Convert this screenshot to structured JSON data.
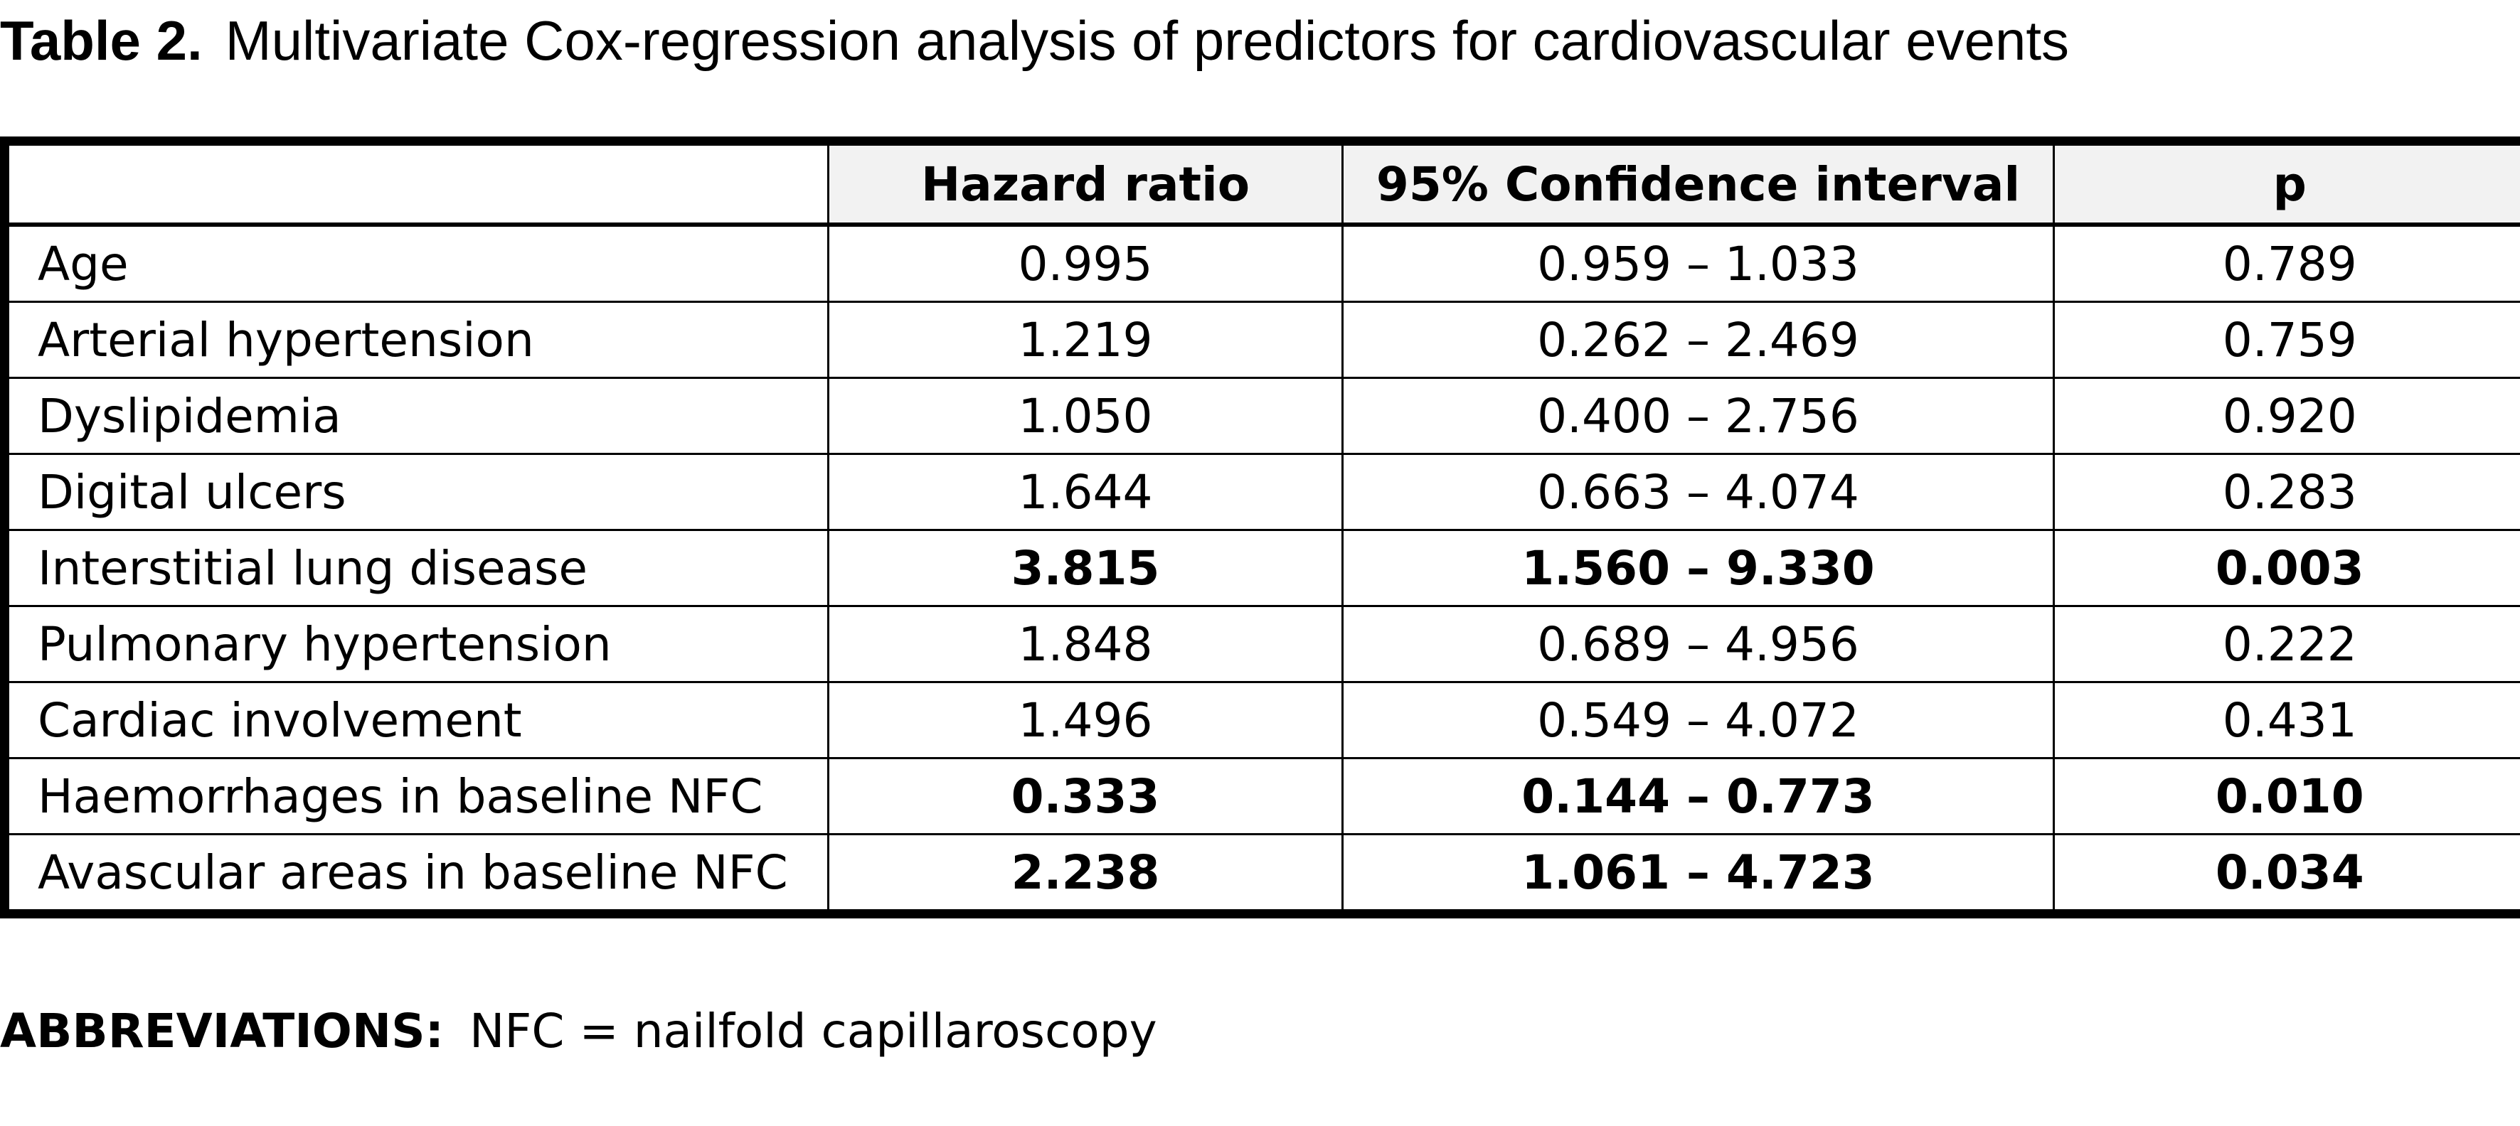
{
  "caption": {
    "label": "Table 2.",
    "title": "Multivariate Cox-regression analysis of predictors for cardiovascular events"
  },
  "table": {
    "columns": [
      "",
      "Hazard ratio",
      "95% Confidence interval",
      "p"
    ],
    "rows": [
      {
        "predictor": "Age",
        "hazard_ratio": "0.995",
        "ci": "0.959 – 1.033",
        "p": "0.789",
        "significant": false
      },
      {
        "predictor": "Arterial hypertension",
        "hazard_ratio": "1.219",
        "ci": "0.262 – 2.469",
        "p": "0.759",
        "significant": false
      },
      {
        "predictor": "Dyslipidemia",
        "hazard_ratio": "1.050",
        "ci": "0.400 – 2.756",
        "p": "0.920",
        "significant": false
      },
      {
        "predictor": "Digital ulcers",
        "hazard_ratio": "1.644",
        "ci": "0.663 – 4.074",
        "p": "0.283",
        "significant": false
      },
      {
        "predictor": "Interstitial lung disease",
        "hazard_ratio": "3.815",
        "ci": "1.560 – 9.330",
        "p": "0.003",
        "significant": true
      },
      {
        "predictor": "Pulmonary hypertension",
        "hazard_ratio": "1.848",
        "ci": "0.689 – 4.956",
        "p": "0.222",
        "significant": false
      },
      {
        "predictor": "Cardiac involvement",
        "hazard_ratio": "1.496",
        "ci": "0.549 – 4.072",
        "p": "0.431",
        "significant": false
      },
      {
        "predictor": "Haemorrhages in baseline NFC",
        "hazard_ratio": "0.333",
        "ci": "0.144 – 0.773",
        "p": "0.010",
        "significant": true
      },
      {
        "predictor": "Avascular areas in baseline NFC",
        "hazard_ratio": "2.238",
        "ci": "1.061 – 4.723",
        "p": "0.034",
        "significant": true
      }
    ]
  },
  "footnote": {
    "label": "ABBREVIATIONS:",
    "text": "NFC = nailfold capillaroscopy"
  }
}
